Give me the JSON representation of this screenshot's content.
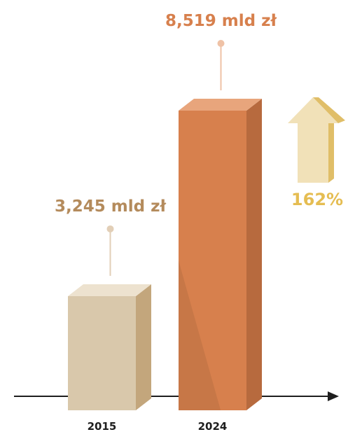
{
  "chart_data": {
    "type": "bar",
    "categories": [
      "2015",
      "2024"
    ],
    "values": [
      3.245,
      8.519
    ],
    "value_labels": [
      "3,245 mld zł",
      "8,519 mld zł"
    ],
    "growth_label": "162%",
    "grid": false,
    "colors": {
      "bar_2015": "#d9c8ab",
      "bar_2015_side": "#c3a67c",
      "bar_2015_top": "#ede2cf",
      "bar_2024": "#d7804d",
      "bar_2024_side": "#b76a3e",
      "bar_2024_top": "#e8a57c",
      "label_2015": "#b48b5c",
      "label_2024": "#d7804d",
      "connector_2015": "#e2cfb7",
      "connector_2024": "#efc2a6",
      "arrow_fill": "#f1e1b8",
      "arrow_side": "#e0be68",
      "growth_text": "#e5bd52",
      "axis": "#1e1e1e"
    }
  }
}
